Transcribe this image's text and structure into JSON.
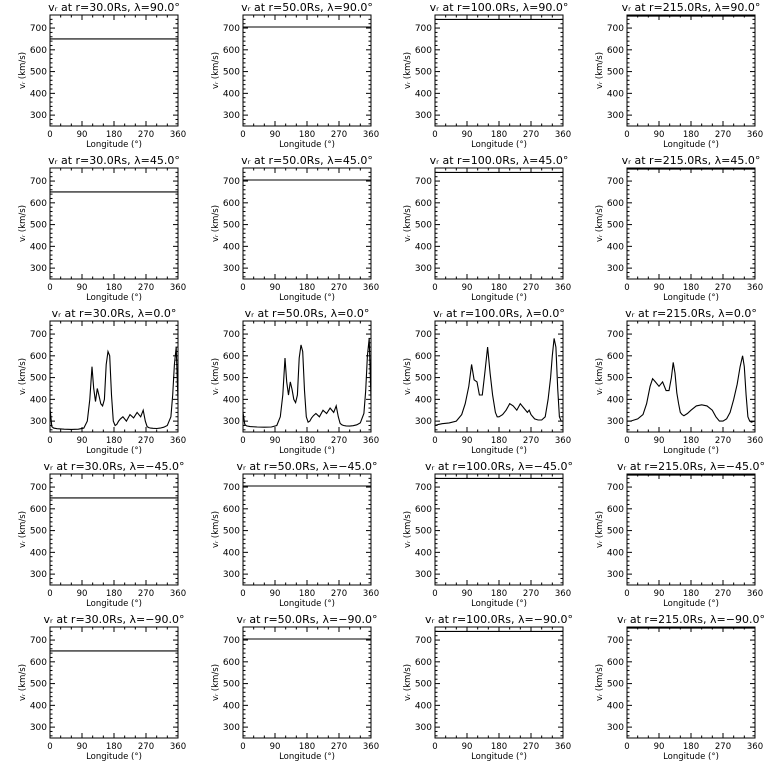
{
  "chart_data": {
    "type": "line",
    "layout": "5 rows x 4 columns",
    "xlabel": "Longitude (°)",
    "ylabel": "vᵣ (km/s)",
    "xlim": [
      0,
      360
    ],
    "ylim": [
      250,
      760
    ],
    "xticks": [
      0,
      90,
      180,
      270,
      360
    ],
    "yticks": [
      300,
      400,
      500,
      600,
      700
    ],
    "panels": [
      {
        "title": "vᵣ at r=30.0Rs, λ=90.0°",
        "x": [
          0,
          360
        ],
        "y": [
          650,
          650
        ]
      },
      {
        "title": "vᵣ at r=50.0Rs, λ=90.0°",
        "x": [
          0,
          360
        ],
        "y": [
          705,
          705
        ]
      },
      {
        "title": "vᵣ at r=100.0Rs, λ=90.0°",
        "x": [
          0,
          360
        ],
        "y": [
          740,
          740
        ]
      },
      {
        "title": "vᵣ at r=215.0Rs, λ=90.0°",
        "x": [
          0,
          360
        ],
        "y": [
          755,
          755
        ]
      },
      {
        "title": "vᵣ at r=30.0Rs, λ=45.0°",
        "x": [
          0,
          360
        ],
        "y": [
          650,
          650
        ]
      },
      {
        "title": "vᵣ at r=50.0Rs, λ=45.0°",
        "x": [
          0,
          360
        ],
        "y": [
          705,
          705
        ]
      },
      {
        "title": "vᵣ at r=100.0Rs, λ=45.0°",
        "x": [
          0,
          360
        ],
        "y": [
          740,
          740
        ]
      },
      {
        "title": "vᵣ at r=215.0Rs, λ=45.0°",
        "x": [
          0,
          360
        ],
        "y": [
          755,
          755
        ]
      },
      {
        "title": "vᵣ at r=30.0Rs, λ=0.0°",
        "x": [
          0,
          5,
          10,
          20,
          40,
          60,
          80,
          95,
          105,
          112,
          118,
          123,
          128,
          133,
          138,
          143,
          148,
          153,
          158,
          163,
          168,
          173,
          178,
          183,
          188,
          193,
          198,
          205,
          215,
          225,
          235,
          245,
          255,
          262,
          268,
          273,
          278,
          283,
          290,
          300,
          310,
          320,
          330,
          340,
          345,
          350,
          355,
          360
        ],
        "y": [
          360,
          275,
          268,
          265,
          263,
          262,
          263,
          268,
          300,
          400,
          550,
          450,
          390,
          450,
          415,
          380,
          370,
          400,
          560,
          620,
          600,
          420,
          300,
          280,
          285,
          300,
          310,
          320,
          300,
          330,
          315,
          340,
          320,
          350,
          300,
          275,
          270,
          268,
          267,
          266,
          268,
          272,
          280,
          320,
          420,
          560,
          640,
          390
        ]
      },
      {
        "title": "vᵣ at r=50.0Rs, λ=0.0°",
        "x": [
          0,
          5,
          10,
          20,
          40,
          60,
          80,
          95,
          105,
          112,
          118,
          123,
          128,
          133,
          138,
          143,
          148,
          153,
          158,
          163,
          168,
          173,
          178,
          183,
          188,
          193,
          198,
          205,
          215,
          225,
          235,
          245,
          255,
          262,
          268,
          273,
          278,
          283,
          290,
          300,
          310,
          320,
          330,
          340,
          345,
          350,
          355,
          360
        ],
        "y": [
          340,
          285,
          278,
          275,
          273,
          272,
          273,
          280,
          320,
          420,
          590,
          480,
          420,
          480,
          445,
          400,
          385,
          420,
          590,
          650,
          620,
          440,
          320,
          295,
          300,
          315,
          325,
          335,
          320,
          350,
          335,
          360,
          340,
          370,
          320,
          290,
          283,
          280,
          278,
          277,
          279,
          283,
          292,
          335,
          440,
          600,
          680,
          400
        ]
      },
      {
        "title": "vᵣ at r=100.0Rs, λ=0.0°",
        "x": [
          0,
          10,
          20,
          40,
          60,
          75,
          85,
          95,
          103,
          110,
          118,
          125,
          133,
          140,
          148,
          155,
          162,
          170,
          175,
          180,
          190,
          200,
          210,
          220,
          230,
          240,
          250,
          260,
          265,
          270,
          280,
          290,
          300,
          310,
          318,
          325,
          330,
          335,
          340,
          345,
          350,
          355,
          360
        ],
        "y": [
          280,
          285,
          288,
          292,
          300,
          330,
          380,
          460,
          560,
          490,
          480,
          420,
          420,
          520,
          640,
          520,
          420,
          340,
          320,
          320,
          330,
          350,
          380,
          370,
          350,
          380,
          360,
          340,
          350,
          330,
          310,
          305,
          305,
          320,
          400,
          500,
          600,
          680,
          640,
          450,
          320,
          300,
          300
        ]
      },
      {
        "title": "vᵣ at r=215.0Rs, λ=0.0°",
        "x": [
          0,
          10,
          20,
          30,
          45,
          55,
          65,
          72,
          80,
          90,
          100,
          110,
          118,
          125,
          130,
          135,
          140,
          145,
          150,
          155,
          160,
          170,
          180,
          195,
          210,
          225,
          240,
          250,
          260,
          270,
          280,
          290,
          300,
          310,
          318,
          325,
          330,
          335,
          340,
          345,
          350,
          360
        ],
        "y": [
          300,
          300,
          305,
          310,
          330,
          380,
          460,
          495,
          480,
          460,
          480,
          440,
          440,
          500,
          570,
          520,
          430,
          380,
          340,
          330,
          325,
          335,
          350,
          370,
          375,
          370,
          350,
          320,
          300,
          300,
          310,
          340,
          400,
          470,
          550,
          600,
          550,
          420,
          320,
          300,
          295,
          300
        ]
      },
      {
        "title": "vᵣ at r=30.0Rs, λ=−45.0°",
        "x": [
          0,
          360
        ],
        "y": [
          650,
          650
        ]
      },
      {
        "title": "vᵣ at r=50.0Rs, λ=−45.0°",
        "x": [
          0,
          360
        ],
        "y": [
          705,
          705
        ]
      },
      {
        "title": "vᵣ at r=100.0Rs, λ=−45.0°",
        "x": [
          0,
          360
        ],
        "y": [
          740,
          740
        ]
      },
      {
        "title": "vᵣ at r=215.0Rs, λ=−45.0°",
        "x": [
          0,
          360
        ],
        "y": [
          755,
          755
        ]
      },
      {
        "title": "vᵣ at r=30.0Rs, λ=−90.0°",
        "x": [
          0,
          360
        ],
        "y": [
          650,
          650
        ]
      },
      {
        "title": "vᵣ at r=50.0Rs, λ=−90.0°",
        "x": [
          0,
          360
        ],
        "y": [
          705,
          705
        ]
      },
      {
        "title": "vᵣ at r=100.0Rs, λ=−90.0°",
        "x": [
          0,
          360
        ],
        "y": [
          740,
          740
        ]
      },
      {
        "title": "vᵣ at r=215.0Rs, λ=−90.0°",
        "x": [
          0,
          360
        ],
        "y": [
          755,
          755
        ]
      }
    ]
  }
}
